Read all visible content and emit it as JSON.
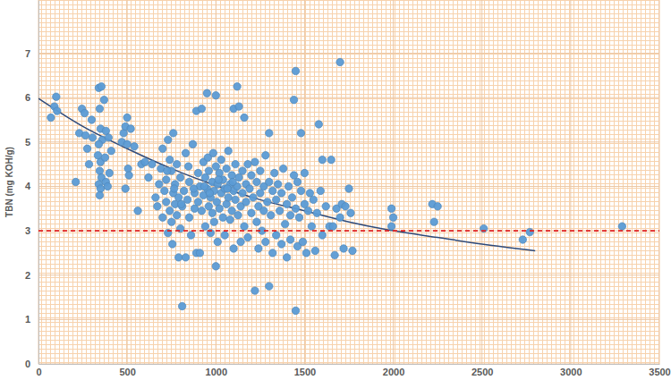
{
  "chart_data": {
    "type": "scatter",
    "y_label": "TBN (mg KOH/g)",
    "xlim": [
      0,
      3500
    ],
    "xticks": [
      0,
      500,
      1000,
      1500,
      2000,
      2500,
      3000,
      3500
    ],
    "ylim": [
      0,
      8.2
    ],
    "yticks": [
      0,
      1,
      2,
      3,
      4,
      5,
      6,
      7
    ],
    "grid": true,
    "series": [
      {
        "type": "scatter",
        "color": "#5b9bd5",
        "marker": "circle",
        "x": [
          70,
          90,
          100,
          105,
          210,
          230,
          245,
          260,
          265,
          275,
          285,
          300,
          305,
          340,
          355,
          345,
          350,
          360,
          340,
          335,
          350,
          345,
          355,
          340,
          350,
          345,
          370,
          380,
          375,
          380,
          390,
          395,
          400,
          410,
          470,
          480,
          490,
          500,
          500,
          505,
          510,
          490,
          520,
          540,
          560,
          580,
          600,
          620,
          640,
          660,
          670,
          680,
          690,
          700,
          700,
          710,
          720,
          720,
          730,
          730,
          740,
          740,
          750,
          750,
          755,
          760,
          760,
          770,
          770,
          780,
          780,
          790,
          790,
          800,
          800,
          810,
          810,
          820,
          830,
          830,
          840,
          850,
          850,
          860,
          870,
          880,
          880,
          890,
          890,
          900,
          900,
          910,
          910,
          920,
          920,
          930,
          930,
          940,
          940,
          950,
          950,
          955,
          960,
          960,
          970,
          970,
          980,
          980,
          985,
          990,
          990,
          1000,
          1000,
          1000,
          1005,
          1010,
          1010,
          1020,
          1020,
          1030,
          1030,
          1040,
          1040,
          1050,
          1050,
          1060,
          1060,
          1070,
          1070,
          1080,
          1080,
          1090,
          1090,
          1100,
          1100,
          1100,
          1110,
          1110,
          1120,
          1120,
          1125,
          1130,
          1130,
          1140,
          1140,
          1150,
          1150,
          1160,
          1160,
          1170,
          1170,
          1180,
          1180,
          1190,
          1200,
          1200,
          1210,
          1220,
          1220,
          1230,
          1230,
          1240,
          1240,
          1250,
          1250,
          1260,
          1270,
          1270,
          1280,
          1280,
          1290,
          1300,
          1300,
          1300,
          1310,
          1320,
          1320,
          1330,
          1340,
          1340,
          1350,
          1360,
          1370,
          1370,
          1380,
          1390,
          1400,
          1400,
          1410,
          1420,
          1420,
          1430,
          1440,
          1440,
          1450,
          1450,
          1450,
          1460,
          1460,
          1470,
          1480,
          1480,
          1490,
          1500,
          1500,
          1510,
          1520,
          1530,
          1540,
          1550,
          1560,
          1570,
          1580,
          1590,
          1600,
          1600,
          1620,
          1640,
          1650,
          1660,
          1670,
          1680,
          1700,
          1700,
          1710,
          1720,
          1730,
          1750,
          1760,
          1770,
          1990,
          2000,
          1990,
          2220,
          2230,
          2250,
          2510,
          2730,
          2770,
          3290,
          725,
          765,
          805,
          845,
          875,
          935,
          965,
          1015,
          1065,
          1095
        ],
        "values": [
          5.55,
          5.8,
          6.02,
          5.7,
          4.1,
          5.2,
          5.75,
          5.65,
          5.15,
          4.85,
          4.5,
          5.5,
          5.1,
          6.22,
          6.25,
          5.75,
          5.3,
          5.05,
          4.95,
          4.7,
          4.55,
          4.35,
          4.2,
          4.05,
          3.95,
          3.8,
          5.95,
          5.25,
          4.65,
          4.1,
          4.0,
          5.1,
          4.3,
          4.8,
          5.0,
          5.2,
          5.35,
          5.55,
          4.95,
          4.4,
          4.25,
          3.95,
          5.3,
          4.9,
          3.45,
          4.5,
          4.55,
          4.2,
          4.5,
          3.75,
          3.55,
          4.05,
          4.4,
          3.3,
          4.85,
          3.9,
          3.65,
          4.15,
          5.05,
          2.95,
          3.45,
          4.6,
          3.2,
          4.35,
          2.7,
          3.85,
          5.2,
          3.6,
          4.05,
          3.35,
          4.5,
          2.4,
          3.75,
          4.2,
          3.05,
          1.3,
          3.55,
          3.9,
          2.4,
          4.75,
          3.7,
          4.1,
          3.3,
          2.9,
          4.95,
          3.5,
          3.85,
          5.7,
          2.5,
          4.3,
          3.65,
          4.0,
          2.5,
          3.45,
          5.75,
          4.55,
          3.8,
          4.2,
          3.1,
          6.1,
          3.95,
          4.65,
          3.55,
          4.35,
          3.75,
          2.95,
          4.1,
          3.4,
          4.75,
          3.9,
          3.2,
          6.05,
          4.45,
          2.2,
          3.65,
          4.05,
          2.75,
          4.3,
          3.5,
          3.85,
          4.6,
          3.3,
          4.15,
          3.95,
          2.9,
          4.4,
          3.6,
          4.8,
          3.75,
          4.05,
          3.25,
          4.25,
          3.45,
          5.75,
          3.9,
          2.6,
          4.5,
          3.7,
          6.25,
          4.0,
          3.35,
          5.8,
          4.2,
          3.55,
          2.75,
          4.35,
          3.85,
          5.55,
          3.1,
          4.05,
          3.65,
          4.5,
          2.85,
          3.95,
          4.25,
          3.4,
          3.75,
          1.65,
          4.55,
          3.2,
          4.1,
          3.55,
          2.6,
          4.35,
          3.85,
          3.0,
          4.0,
          3.45,
          4.7,
          2.75,
          3.65,
          5.2,
          1.75,
          4.1,
          3.35,
          3.9,
          2.5,
          4.3,
          3.7,
          2.9,
          4.05,
          3.45,
          2.7,
          3.85,
          4.4,
          3.15,
          3.6,
          2.4,
          4.0,
          3.35,
          2.8,
          3.75,
          5.95,
          4.25,
          6.6,
          1.2,
          3.5,
          2.65,
          4.1,
          3.3,
          5.2,
          3.9,
          2.75,
          3.6,
          4.3,
          2.5,
          3.45,
          3.85,
          3.1,
          3.7,
          2.55,
          3.4,
          5.4,
          3.9,
          4.6,
          2.9,
          3.55,
          3.1,
          4.6,
          3.1,
          2.45,
          3.5,
          6.8,
          3.3,
          3.6,
          2.6,
          3.55,
          3.95,
          3.4,
          2.55,
          3.5,
          3.3,
          3.1,
          3.6,
          3.2,
          3.55,
          3.05,
          2.8,
          2.97,
          3.1,
          4.35,
          3.95,
          3.6,
          4.45,
          3.95,
          4.0,
          3.85,
          4.15,
          3.95,
          4.1
        ]
      },
      {
        "type": "line",
        "color": "#2e4a7a",
        "line_style": "solid",
        "x": [
          0,
          250,
          500,
          750,
          1000,
          1250,
          1500,
          1750,
          2000,
          2250,
          2500,
          2800
        ],
        "values": [
          5.98,
          5.35,
          4.85,
          4.4,
          4.02,
          3.7,
          3.45,
          3.2,
          3.0,
          2.85,
          2.7,
          2.55
        ]
      }
    ],
    "hlines": [
      {
        "value": 3,
        "color": "#e02020",
        "line_style": "dashed"
      }
    ]
  }
}
